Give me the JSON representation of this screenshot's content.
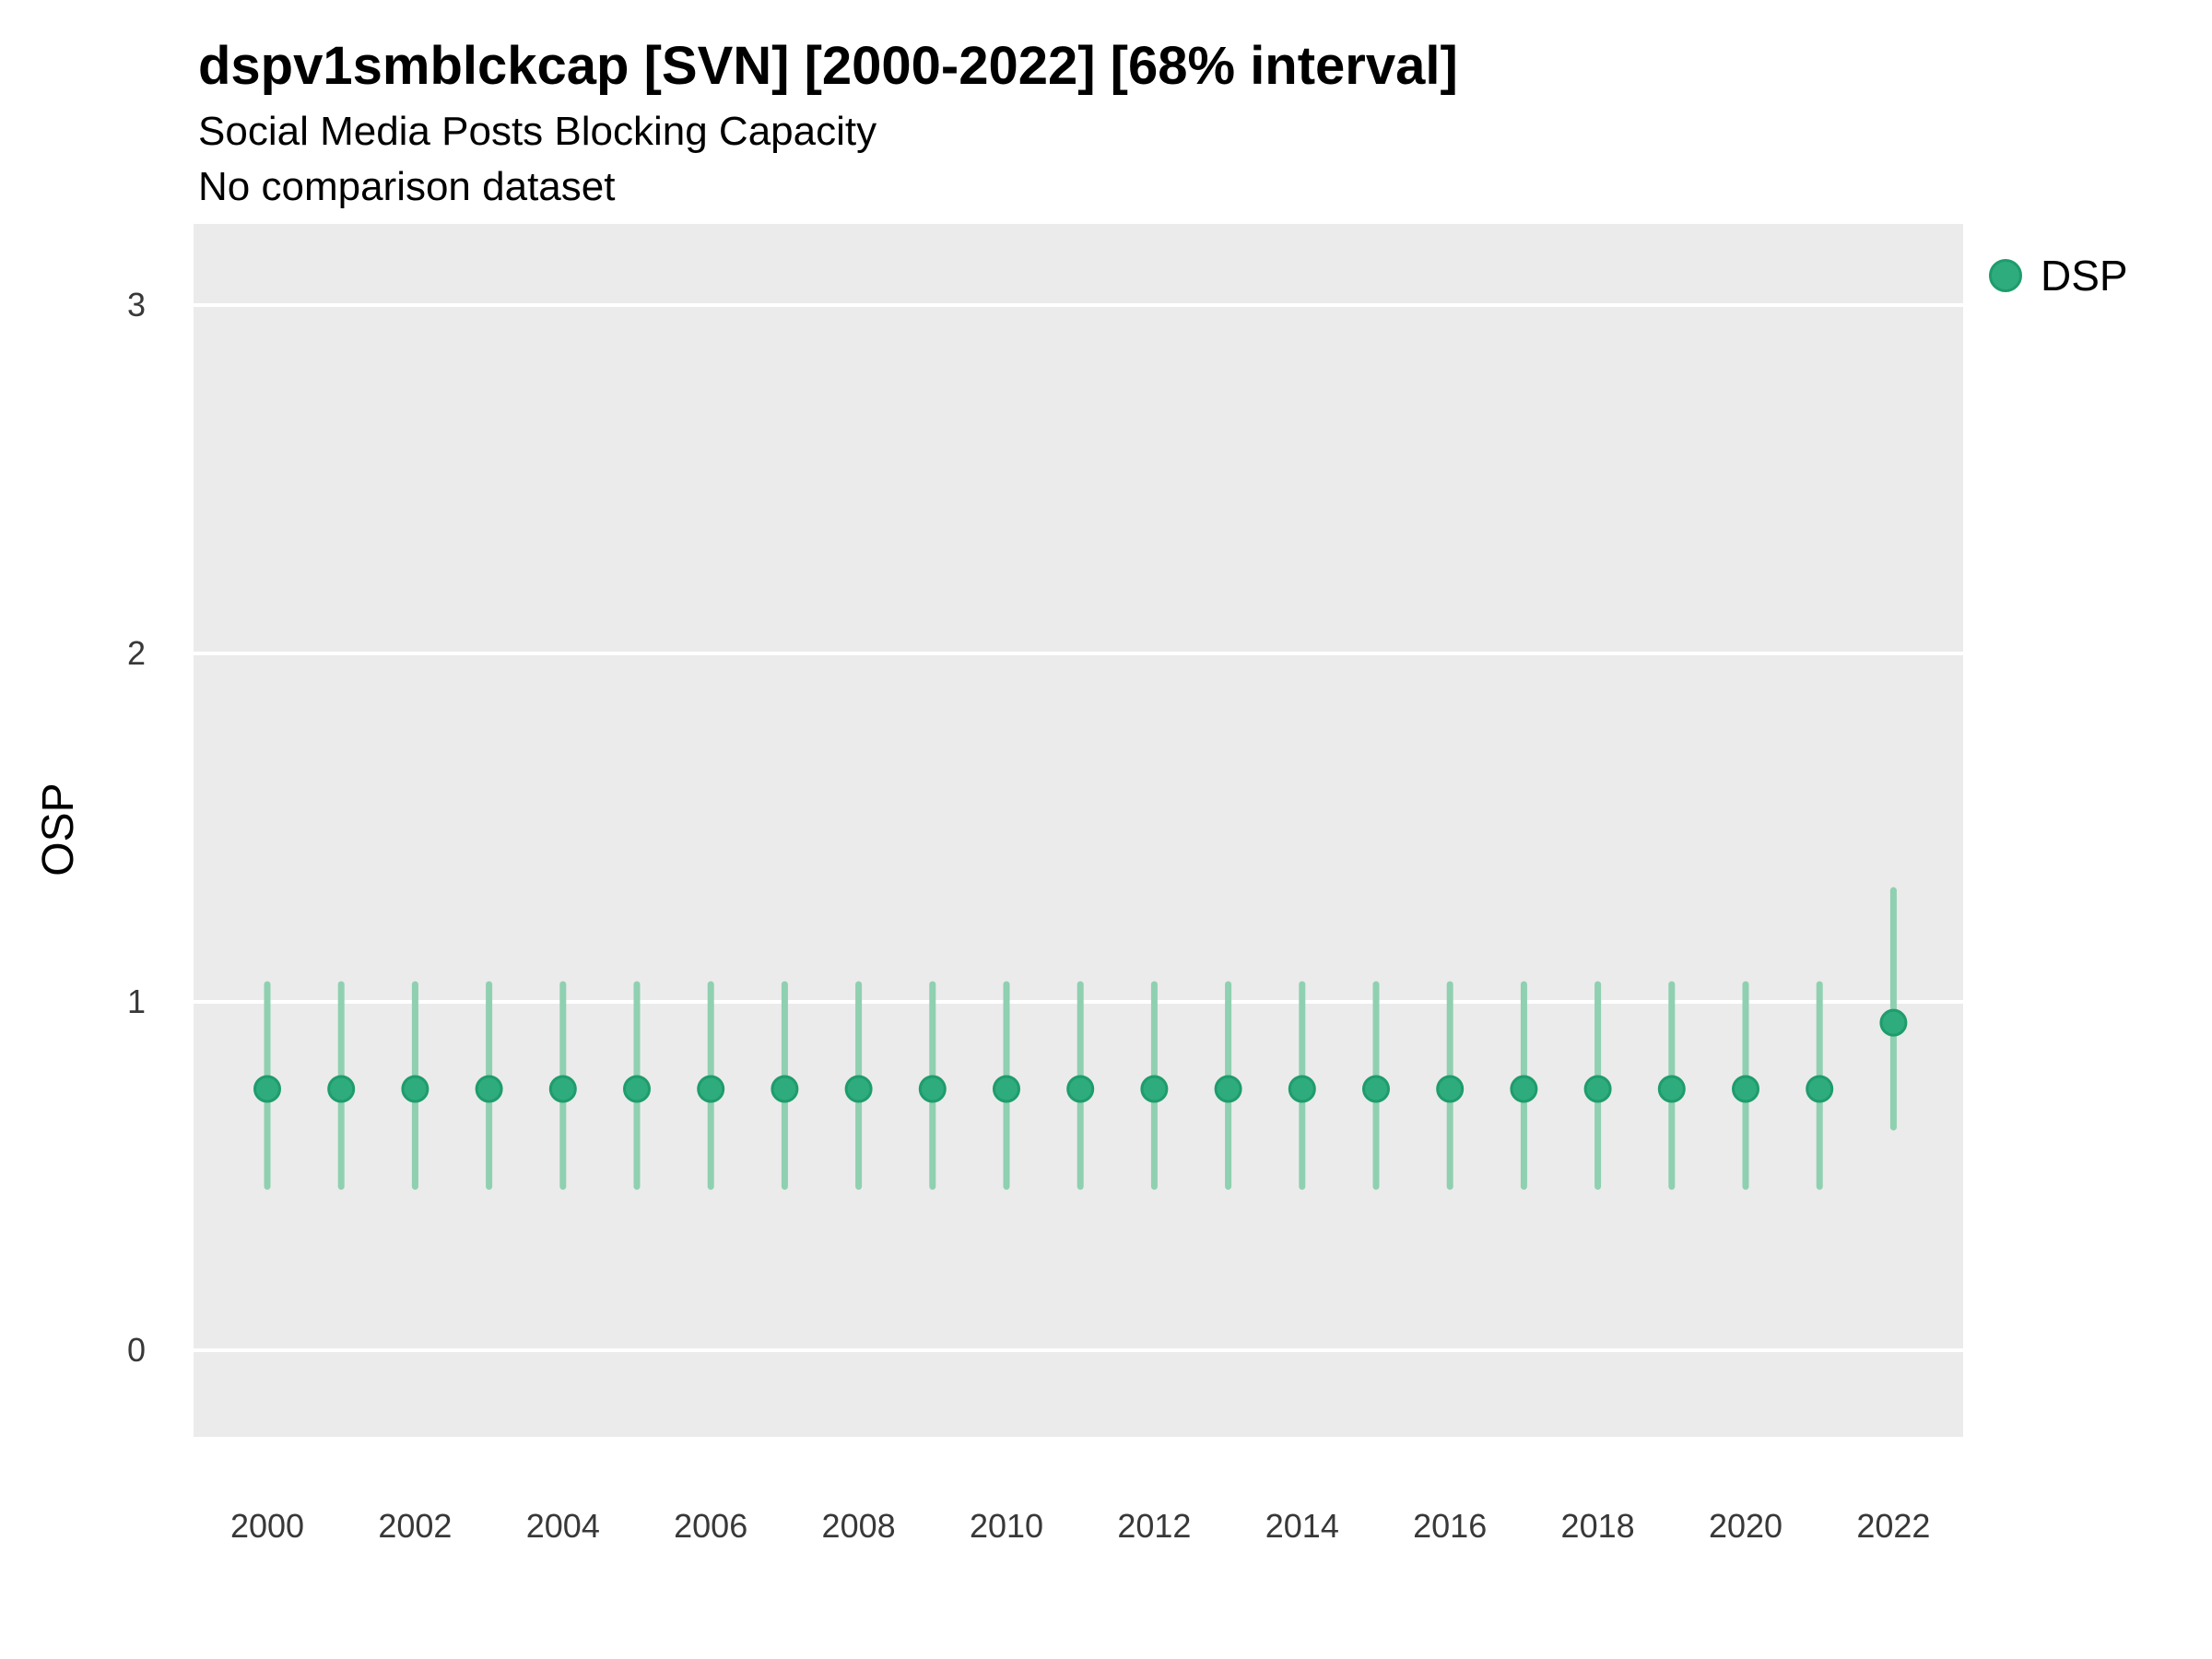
{
  "header": {
    "title": "dspv1smblckcap [SVN] [2000-2022] [68% interval]",
    "subtitle": "Social Media Posts Blocking Capacity",
    "subtitle2": "No comparison dataset"
  },
  "chart_data": {
    "type": "scatter",
    "subtype": "pointrange",
    "title": "dspv1smblckcap [SVN] [2000-2022] [68% interval]",
    "subtitle": "Social Media Posts Blocking Capacity",
    "note": "No comparison dataset",
    "interval_level": "68%",
    "xlabel": "",
    "ylabel": "OSP",
    "x": [
      2000,
      2001,
      2002,
      2003,
      2004,
      2005,
      2006,
      2007,
      2008,
      2009,
      2010,
      2011,
      2012,
      2013,
      2014,
      2015,
      2016,
      2017,
      2018,
      2019,
      2020,
      2021,
      2022
    ],
    "series": [
      {
        "name": "DSP",
        "median": [
          0.75,
          0.75,
          0.75,
          0.75,
          0.75,
          0.75,
          0.75,
          0.75,
          0.75,
          0.75,
          0.75,
          0.75,
          0.75,
          0.75,
          0.75,
          0.75,
          0.75,
          0.75,
          0.75,
          0.75,
          0.75,
          0.75,
          0.94
        ],
        "interval_low": [
          0.47,
          0.47,
          0.47,
          0.47,
          0.47,
          0.47,
          0.47,
          0.47,
          0.47,
          0.47,
          0.47,
          0.47,
          0.47,
          0.47,
          0.47,
          0.47,
          0.47,
          0.47,
          0.47,
          0.47,
          0.47,
          0.47,
          0.64
        ],
        "interval_high": [
          1.05,
          1.05,
          1.05,
          1.05,
          1.05,
          1.05,
          1.05,
          1.05,
          1.05,
          1.05,
          1.05,
          1.05,
          1.05,
          1.05,
          1.05,
          1.05,
          1.05,
          1.05,
          1.05,
          1.05,
          1.05,
          1.05,
          1.32
        ]
      }
    ],
    "x_tick_labels": [
      "2000",
      "2002",
      "2004",
      "2006",
      "2008",
      "2010",
      "2012",
      "2014",
      "2016",
      "2018",
      "2020",
      "2022"
    ],
    "y_ticks": [
      0,
      1,
      2,
      3
    ],
    "ylim": [
      -0.25,
      3.23
    ],
    "grid": "major-horizontal-white",
    "legend_position": "right",
    "colors": {
      "panel_bg": "#EBEBEB",
      "gridline": "#FFFFFF",
      "point_fill": "#2EAC7E",
      "point_stroke": "#1F9C6C",
      "interval_bar": "#8FD0B0",
      "tick_text": "#383838",
      "text": "#000000"
    }
  }
}
